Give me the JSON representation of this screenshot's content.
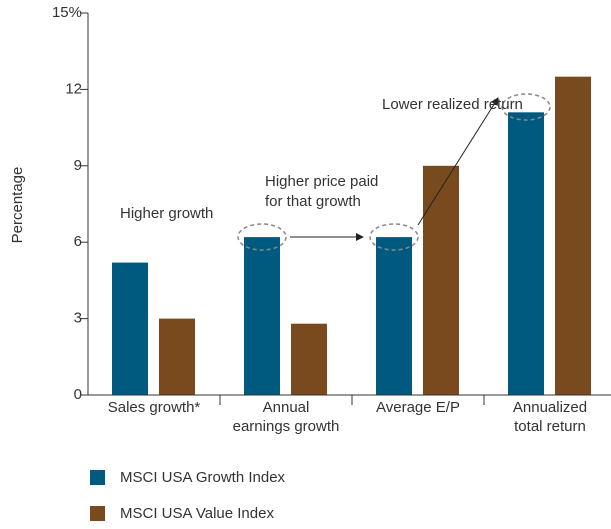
{
  "chart_data": {
    "type": "bar",
    "y_label": "Percentage",
    "categories": [
      "Sales growth*",
      "Annual\nearnings growth",
      "Average E/P",
      "Annualized\ntotal return"
    ],
    "series": [
      {
        "name": "MSCI USA Growth Index",
        "color": "#005a7f",
        "values": [
          5.2,
          6.2,
          6.2,
          11.1
        ]
      },
      {
        "name": "MSCI USA Value Index",
        "color": "#7a4a1f",
        "values": [
          3.0,
          2.8,
          9.0,
          12.5
        ]
      }
    ],
    "ylim": [
      0,
      15
    ],
    "yticks": [
      0,
      3,
      6,
      9,
      12,
      {
        "value": 15,
        "label": "15%"
      }
    ],
    "annotations": [
      "Higher growth",
      "Higher price paid\nfor that growth",
      "Lower realized return"
    ],
    "grid": false
  }
}
